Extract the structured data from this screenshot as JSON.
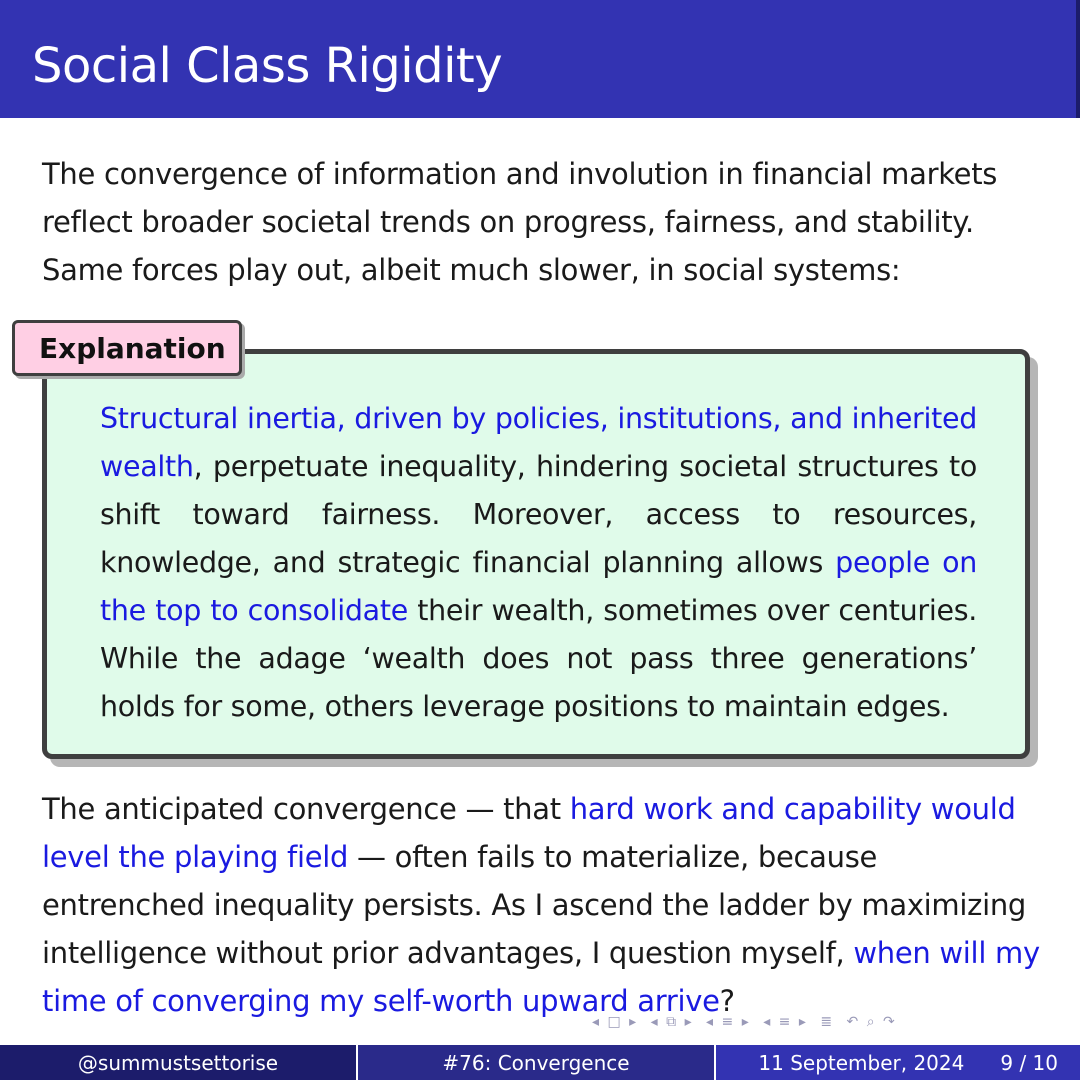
{
  "slide": {
    "title": "Social Class Rigidity",
    "intro": "The convergence of information and involution in financial markets reflect broader societal trends on progress, fairness, and stability. Same forces play out, albeit much slower, in social systems:",
    "box": {
      "label": "Explanation",
      "hl_1": "Structural inertia, driven by policies, institutions, and inherited wealth",
      "text_1": ", perpetuate inequality, hindering societal structures to shift toward fairness.  Moreover, access to resources, knowledge, and strategic financial planning allows ",
      "hl_2": "people on the top to consolidate",
      "text_2": " their wealth, sometimes over centuries. While the adage ‘wealth does not pass three generations’ holds for some, others leverage positions to maintain edges."
    },
    "outro": {
      "text_1": "The anticipated convergence — that ",
      "hl_1": "hard work and capability would level the playing field",
      "text_2": " — often fails to materialize, because entrenched inequality persists.  As I ascend the ladder by maximizing intelligence without prior advantages, I question myself, ",
      "hl_2": "when will my time of converging my self-worth upward arrive",
      "text_3": "?"
    }
  },
  "navigation": {
    "icons": [
      "◂ □ ▸",
      "◂ ⧉ ▸",
      "◂ ≡ ▸",
      "◂ ≡ ▸",
      "≣",
      "↶ ⌕ ↷"
    ]
  },
  "footer": {
    "author": "@summustsettorise",
    "talk_title": "#76: Convergence",
    "date": "11 September, 2024",
    "page": "9 / 10"
  },
  "colors": {
    "header": "#3333b2",
    "footer_dark": "#1c1c6b",
    "highlight": "#1a1ae0",
    "box_background": "#e0fbea",
    "label_background": "#ffcfe4"
  }
}
